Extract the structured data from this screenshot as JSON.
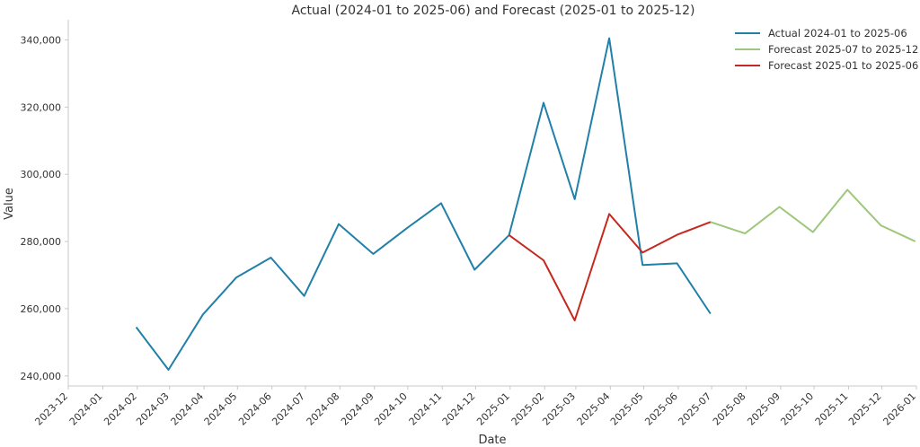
{
  "chart_data": {
    "type": "line",
    "title": "Actual (2024-01 to 2025-06) and Forecast (2025-01 to 2025-12)",
    "xlabel": "Date",
    "ylabel": "Value",
    "ylim": [
      237000,
      346000
    ],
    "xlim": [
      "2023-12",
      "2026-01"
    ],
    "x_ticks": [
      "2023-12",
      "2024-01",
      "2024-02",
      "2024-03",
      "2024-04",
      "2024-05",
      "2024-06",
      "2024-07",
      "2024-08",
      "2024-09",
      "2024-10",
      "2024-11",
      "2024-12",
      "2025-01",
      "2025-02",
      "2025-03",
      "2025-04",
      "2025-05",
      "2025-06",
      "2025-07",
      "2025-08",
      "2025-09",
      "2025-10",
      "2025-11",
      "2025-12",
      "2026-01"
    ],
    "y_ticks": [
      240000,
      260000,
      280000,
      300000,
      320000,
      340000
    ],
    "y_tick_labels": [
      "240,000",
      "260,000",
      "280,000",
      "300,000",
      "320,000",
      "340,000"
    ],
    "grid": false,
    "legend_position": "top-right",
    "series": [
      {
        "name": "Actual 2024-01 to 2025-06",
        "color": "#2180a8",
        "x": [
          "2024-01-31",
          "2024-02-29",
          "2024-03-31",
          "2024-04-30",
          "2024-05-31",
          "2024-06-30",
          "2024-07-31",
          "2024-08-31",
          "2024-09-30",
          "2024-10-31",
          "2024-11-30",
          "2024-12-31",
          "2025-01-31",
          "2025-02-28",
          "2025-03-31",
          "2025-04-30",
          "2025-05-31",
          "2025-06-30"
        ],
        "values": [
          254500,
          241800,
          258300,
          269300,
          275200,
          263800,
          285200,
          276300,
          283900,
          291400,
          271600,
          281900,
          321300,
          292600,
          340500,
          273000,
          273500,
          258500
        ]
      },
      {
        "name": "Forecast 2025-07 to 2025-12",
        "color": "#9dc77a",
        "x": [
          "2025-06-30",
          "2025-07-31",
          "2025-08-31",
          "2025-09-30",
          "2025-10-31",
          "2025-11-30",
          "2025-12-31"
        ],
        "values": [
          285800,
          282400,
          290300,
          282800,
          295400,
          284800,
          280000
        ]
      },
      {
        "name": "Forecast 2025-01 to 2025-06",
        "color": "#c4281e",
        "x": [
          "2024-12-31",
          "2025-01-31",
          "2025-02-28",
          "2025-03-31",
          "2025-04-30",
          "2025-05-31",
          "2025-06-30"
        ],
        "values": [
          281900,
          274400,
          256500,
          288200,
          276700,
          282000,
          285800
        ]
      }
    ]
  }
}
